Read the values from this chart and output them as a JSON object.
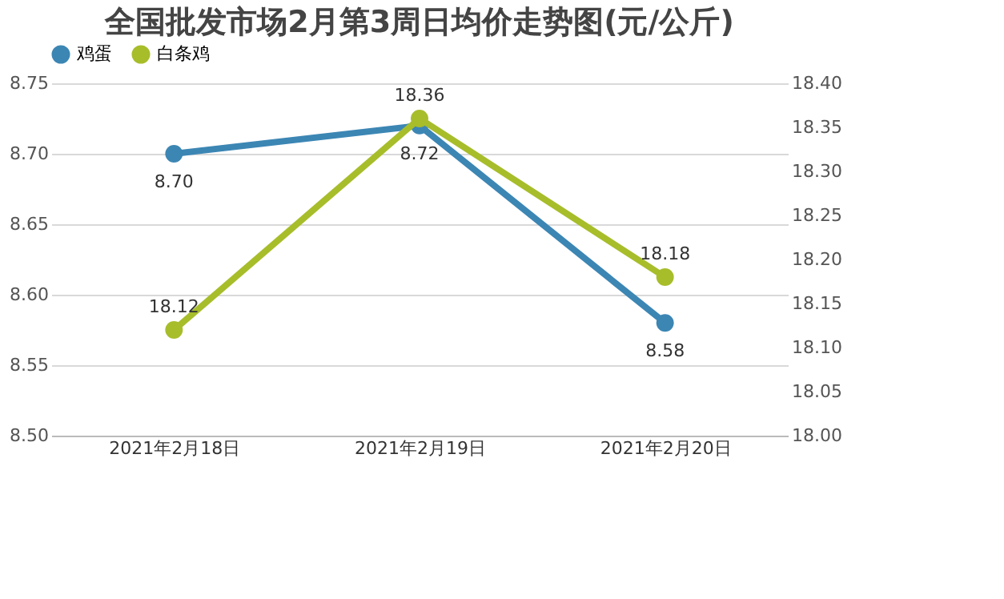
{
  "chart_data": {
    "type": "line",
    "title": "全国批发市场2月第3周日均价走势图(元/公斤)",
    "categories": [
      "2021年2月18日",
      "2021年2月19日",
      "2021年2月20日"
    ],
    "series": [
      {
        "name": "鸡蛋",
        "color": "#3c86b4",
        "values": [
          8.7,
          8.72,
          8.58
        ],
        "value_labels": [
          "8.70",
          "8.72",
          "8.58"
        ]
      },
      {
        "name": "白条鸡",
        "color": "#a8bd2a",
        "values": [
          18.12,
          18.36,
          18.18
        ],
        "value_labels": [
          "18.12",
          "18.36",
          "18.18"
        ],
        "axis": "y2"
      }
    ],
    "ylim": [
      8.5,
      8.75
    ],
    "yticks": [
      {
        "value": 8.5,
        "label": "8.50"
      },
      {
        "value": 8.55,
        "label": "8.55"
      },
      {
        "value": 8.6,
        "label": "8.60"
      },
      {
        "value": 8.65,
        "label": "8.65"
      },
      {
        "value": 8.7,
        "label": "8.70"
      },
      {
        "value": 8.75,
        "label": "8.75"
      }
    ],
    "y2lim": [
      18.0,
      18.4
    ],
    "y2ticks": [
      {
        "value": 18.0,
        "label": "18.00"
      },
      {
        "value": 18.05,
        "label": "18.05"
      },
      {
        "value": 18.1,
        "label": "18.10"
      },
      {
        "value": 18.15,
        "label": "18.15"
      },
      {
        "value": 18.2,
        "label": "18.20"
      },
      {
        "value": 18.25,
        "label": "18.25"
      },
      {
        "value": 18.3,
        "label": "18.30"
      },
      {
        "value": 18.35,
        "label": "18.35"
      },
      {
        "value": 18.4,
        "label": "18.40"
      }
    ],
    "grid": "y",
    "legend": "top",
    "marker": "circle",
    "line_style": "solid"
  }
}
